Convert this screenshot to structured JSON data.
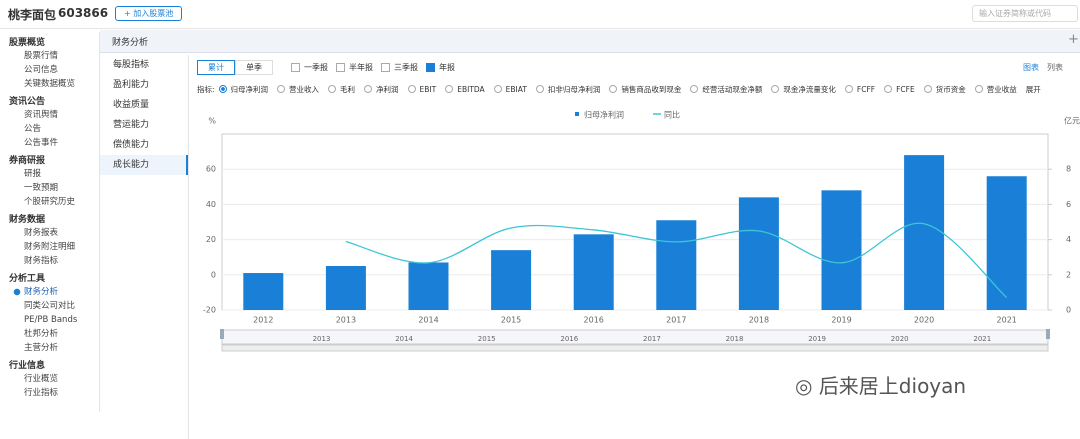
{
  "header": {
    "title": "桃李面包",
    "code": "603866",
    "add_button": "+ 加入股票池",
    "search_placeholder": "输入证券简称或代码"
  },
  "sidebar": [
    {
      "group": "股票概览",
      "items": [
        "股票行情",
        "公司信息",
        "关键数据概览"
      ]
    },
    {
      "group": "资讯公告",
      "items": [
        "资讯舆情",
        "公告",
        "公告事件"
      ]
    },
    {
      "group": "券商研报",
      "items": [
        "研报",
        "一致预期",
        "个股研究历史"
      ]
    },
    {
      "group": "财务数据",
      "items": [
        "财务报表",
        "财务附注明细",
        "财务指标"
      ]
    },
    {
      "group": "分析工具",
      "items": [
        "财务分析",
        "同类公司对比",
        "PE/PB Bands",
        "杜邦分析",
        "主营分析"
      ]
    },
    {
      "group": "行业信息",
      "items": [
        "行业概览",
        "行业指标"
      ]
    }
  ],
  "panel_title": "财务分析",
  "submenu": [
    "每股指标",
    "盈利能力",
    "收益质量",
    "营运能力",
    "偿债能力",
    "成长能力"
  ],
  "toggle": [
    "累计",
    "单季"
  ],
  "periods": [
    "一季报",
    "半年报",
    "三季报",
    "年报"
  ],
  "view": [
    "图表",
    "列表"
  ],
  "indicator_label": "指标:",
  "indicators": [
    "归母净利润",
    "营业收入",
    "毛利",
    "净利润",
    "EBIT",
    "EBITDA",
    "EBIAT",
    "扣非归母净利润",
    "销售商品收到现金",
    "经营活动现金净额",
    "现金净流量变化",
    "FCFF",
    "FCFE",
    "货币资金",
    "营业收益"
  ],
  "expand": "展开",
  "chart_data": {
    "type": "combo",
    "ylabel": "%",
    "y2label": "亿元",
    "categories": [
      "2012",
      "2013",
      "2014",
      "2015",
      "2016",
      "2017",
      "2018",
      "2019",
      "2020",
      "2021"
    ],
    "series": [
      {
        "name": "归母净利润",
        "type": "bar",
        "axis": "y2",
        "color": "#1a7fd6",
        "values": [
          2.1,
          2.5,
          2.7,
          3.4,
          4.3,
          5.1,
          6.4,
          6.8,
          8.8,
          7.6
        ]
      },
      {
        "name": "同比",
        "type": "line",
        "color": "#3cc6d6",
        "values": [
          null,
          18.9,
          6.8,
          26.6,
          25.5,
          18.7,
          24.9,
          6.8,
          29,
          -13
        ]
      }
    ],
    "ylim": [
      -20,
      80
    ],
    "yticks": [
      -20,
      0,
      20,
      40,
      60
    ],
    "y2lim": [
      0,
      10
    ],
    "y2ticks": [
      0,
      2,
      4,
      6,
      8
    ],
    "grid": true,
    "slider_labels": [
      "2013",
      "2014",
      "2015",
      "2016",
      "2017",
      "2018",
      "2019",
      "2020",
      "2021"
    ]
  },
  "watermark": "后来居上dioyan"
}
